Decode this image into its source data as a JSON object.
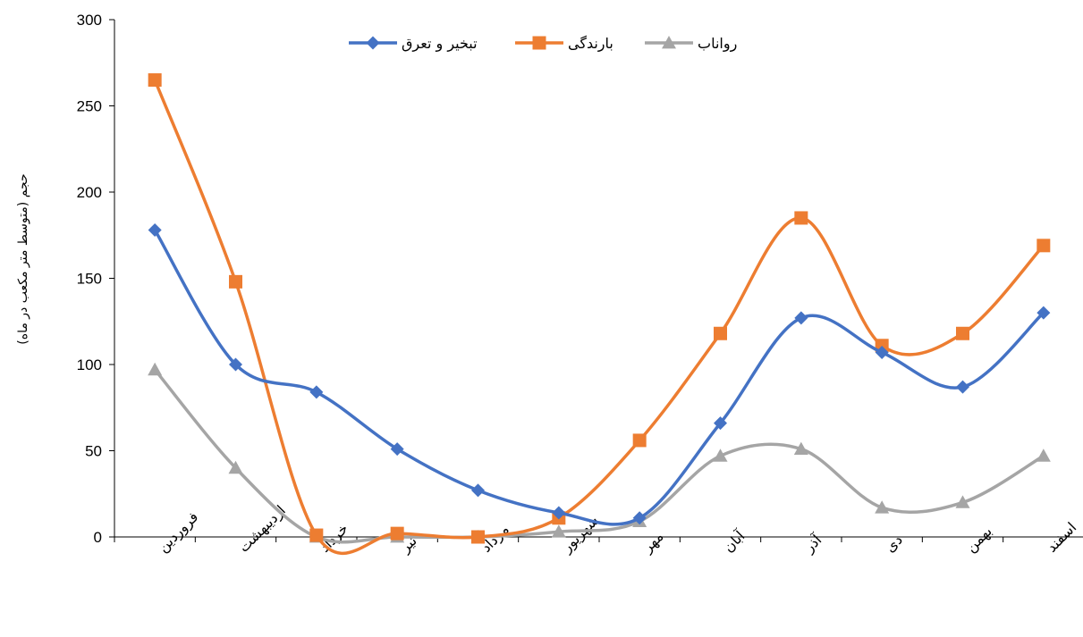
{
  "chart_data": {
    "type": "line",
    "title": "",
    "xlabel": "",
    "ylabel": "حجم (متوسط متر مکعب در ماه)",
    "ylim": [
      0,
      300
    ],
    "yticks": [
      "0",
      "50",
      "100",
      "150",
      "200",
      "250",
      "300"
    ],
    "grid": false,
    "legend_position": "top",
    "categories": [
      "فروردین",
      "اردیبهشت",
      "خرداد",
      "تیر",
      "مرداد",
      "شهریور",
      "مهر",
      "آبان",
      "آذر",
      "دی",
      "بهمن",
      "اسفند"
    ],
    "series": [
      {
        "name": "تبخیر و تعرق",
        "color": "#4472C4",
        "marker": "diamond",
        "values": [
          178,
          100,
          84,
          51,
          27,
          14,
          11,
          66,
          127,
          107,
          87,
          130
        ]
      },
      {
        "name": "بارندگی",
        "color": "#ED7D31",
        "marker": "square",
        "values": [
          265,
          148,
          1,
          2,
          0,
          11,
          56,
          118,
          185,
          111,
          118,
          169
        ]
      },
      {
        "name": "رواناب",
        "color": "#A5A5A5",
        "marker": "triangle",
        "values": [
          97,
          40,
          0,
          0,
          0,
          3,
          9,
          47,
          51,
          17,
          20,
          47
        ]
      }
    ]
  }
}
